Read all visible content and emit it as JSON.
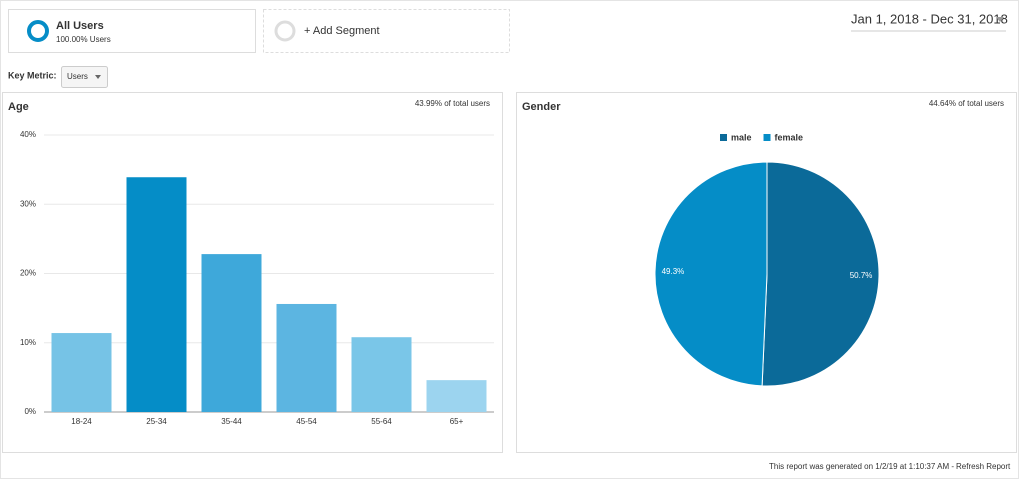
{
  "segments": {
    "active": {
      "name": "All Users",
      "detail": "100.00% Users"
    },
    "add": "+ Add Segment"
  },
  "date_range": "Jan 1, 2018 - Dec 31, 2018",
  "key_metric": {
    "label": "Key Metric:",
    "value": "Users"
  },
  "chart_data": [
    {
      "type": "bar",
      "title": "Age",
      "note": "43.99% of total users",
      "categories": [
        "18-24",
        "25-34",
        "35-44",
        "45-54",
        "55-64",
        "65+"
      ],
      "values": [
        11.4,
        33.9,
        22.8,
        15.6,
        10.8,
        4.6
      ],
      "colors": [
        "#76c3e6",
        "#058dc7",
        "#3ea8da",
        "#5cb5e1",
        "#7ac6e8",
        "#9cd4ef"
      ],
      "ylim": [
        0,
        40
      ],
      "yticks": [
        {
          "value": 0,
          "label": "0%"
        },
        {
          "value": 10,
          "label": "10%"
        },
        {
          "value": 20,
          "label": "20%"
        },
        {
          "value": 30,
          "label": "30%"
        },
        {
          "value": 40,
          "label": "40%"
        }
      ],
      "grid": true
    },
    {
      "type": "pie",
      "title": "Gender",
      "note": "44.64% of total users",
      "categories": [
        "male",
        "female"
      ],
      "values": [
        50.7,
        49.3
      ],
      "value_labels": [
        "50.7%",
        "49.3%"
      ],
      "colors": [
        "#0b6a99",
        "#058dc7"
      ]
    }
  ],
  "footer": {
    "text": "This report was generated on 1/2/19 at 1:10:37 AM - ",
    "link": "Refresh Report"
  }
}
